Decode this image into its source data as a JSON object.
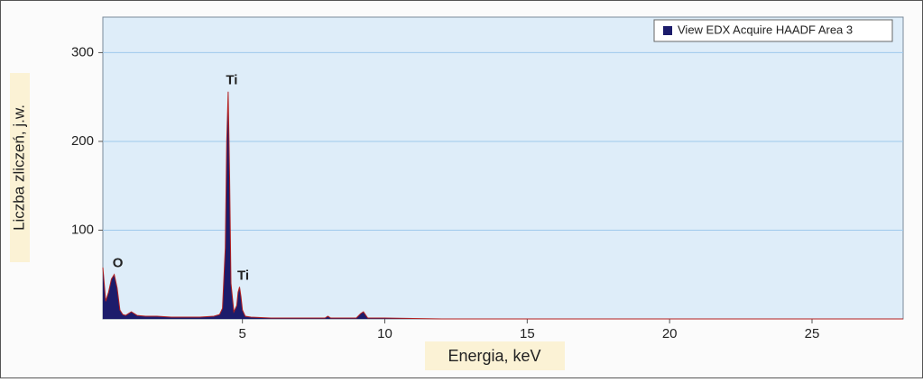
{
  "chart_data": {
    "type": "area",
    "x_label": "Energia, keV",
    "y_label": "Liczba zliczeń, j.w.",
    "x": [
      0.1,
      0.2,
      0.3,
      0.4,
      0.5,
      0.6,
      0.7,
      0.8,
      0.9,
      1.0,
      1.1,
      1.3,
      1.6,
      2.0,
      2.5,
      3.0,
      3.5,
      4.0,
      4.2,
      4.3,
      4.4,
      4.45,
      4.5,
      4.55,
      4.6,
      4.7,
      4.8,
      4.85,
      4.9,
      4.95,
      5.0,
      5.1,
      5.3,
      6.0,
      7.0,
      7.9,
      8.0,
      8.1,
      8.5,
      9.0,
      9.15,
      9.25,
      9.4,
      10.0,
      12,
      15,
      20,
      25,
      28.2
    ],
    "series": [
      {
        "name": "View EDX Acquire HAADF Area 3",
        "color": "#1c1c6b",
        "values": [
          58,
          20,
          30,
          45,
          50,
          35,
          10,
          5,
          4,
          6,
          8,
          4,
          3,
          3,
          2,
          2,
          2,
          3,
          5,
          12,
          80,
          200,
          256,
          160,
          40,
          8,
          15,
          30,
          36,
          25,
          10,
          3,
          2,
          1,
          1,
          1,
          3,
          1,
          1,
          1,
          6,
          8,
          1,
          1,
          0,
          0,
          0,
          0,
          0
        ]
      }
    ],
    "annotations": [
      {
        "text": "O",
        "x": 0.5,
        "y": 50
      },
      {
        "text": "Ti",
        "x": 4.5,
        "y": 256
      },
      {
        "text": "Ti",
        "x": 4.9,
        "y": 36
      }
    ],
    "xlim": [
      0.1,
      28.2
    ],
    "ylim": [
      0,
      340
    ],
    "xticks": [
      5,
      10,
      15,
      20,
      25
    ],
    "yticks": [
      100,
      200,
      300
    ],
    "grid": true,
    "legend": "top-right"
  }
}
